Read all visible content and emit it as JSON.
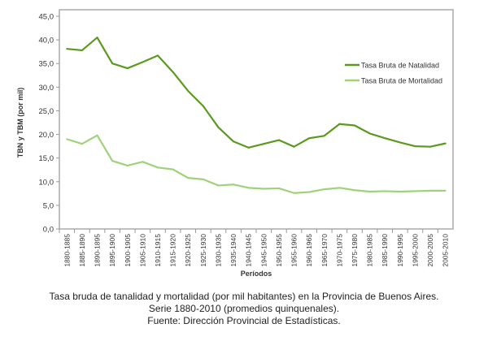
{
  "chart_data": {
    "type": "line",
    "title": "",
    "xlabel": "Períodos",
    "ylabel": "TBN y TBM (por mil)",
    "ylim": [
      0,
      45
    ],
    "yticks": [
      "0,0",
      "5,0",
      "10,0",
      "15,0",
      "20,0",
      "25,0",
      "30,0",
      "35,0",
      "40,0",
      "45,0"
    ],
    "grid": false,
    "legend_position": "top-right",
    "categories": [
      "1880-1885",
      "1885-1890",
      "1890-1895",
      "1895-1900",
      "1900-1905",
      "1905-1910",
      "1910-1915",
      "1915-1920",
      "1920-1925",
      "1925-1930",
      "1930-1935",
      "1935-1940",
      "1940-1945",
      "1945-1950",
      "1950-1955",
      "1955-1960",
      "1960-1965",
      "1965-1970",
      "1970-1975",
      "1975-1980",
      "1980-1985",
      "1985-1990",
      "1990-1995",
      "1995-2000",
      "2000-2005",
      "2005-2010"
    ],
    "series": [
      {
        "name": "Tasa Bruta de Natalidad",
        "color": "#5a9a1e",
        "values": [
          38.1,
          37.8,
          40.5,
          35.0,
          34.0,
          35.3,
          36.7,
          33.2,
          29.2,
          26.0,
          21.5,
          18.5,
          17.2,
          18.0,
          18.8,
          17.4,
          19.2,
          19.7,
          22.2,
          21.9,
          20.2,
          19.2,
          18.3,
          17.5,
          17.4,
          18.1
        ]
      },
      {
        "name": "Tasa Bruta de Mortalidad",
        "color": "#9fd27a",
        "values": [
          19.0,
          18.0,
          19.8,
          14.4,
          13.4,
          14.2,
          13.0,
          12.6,
          10.8,
          10.5,
          9.2,
          9.4,
          8.7,
          8.5,
          8.6,
          7.6,
          7.8,
          8.4,
          8.7,
          8.2,
          7.9,
          8.0,
          7.9,
          8.0,
          8.1,
          8.1
        ]
      }
    ]
  },
  "caption": {
    "line1": "Tasa bruda de tanalidad y mortalidad (por mil habitantes) en la Provincia de Buenos Aires.",
    "line2": "Serie 1880-2010 (promedios quinquenales).",
    "line3": "Fuente: Dirección Provincial de Estadísticas."
  }
}
